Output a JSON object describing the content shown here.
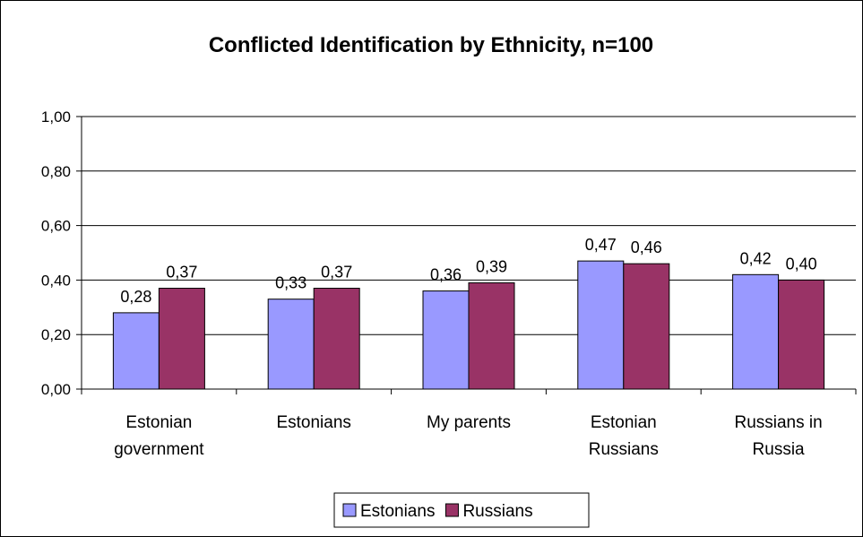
{
  "chart_data": {
    "type": "bar",
    "title": "Conflicted Identification by Ethnicity, n=100",
    "categories": [
      [
        "Estonian",
        "government"
      ],
      [
        "Estonians"
      ],
      [
        "My parents"
      ],
      [
        "Estonian",
        "Russians"
      ],
      [
        "Russians in",
        "Russia"
      ]
    ],
    "series": [
      {
        "name": "Estonians",
        "color": "#9999ff",
        "values": [
          0.28,
          0.33,
          0.36,
          0.47,
          0.42
        ],
        "labels": [
          "0,28",
          "0,33",
          "0,36",
          "0,47",
          "0,42"
        ]
      },
      {
        "name": "Russians",
        "color": "#993366",
        "values": [
          0.37,
          0.37,
          0.39,
          0.46,
          0.4
        ],
        "labels": [
          "0,37",
          "0,37",
          "0,39",
          "0,46",
          "0,40"
        ]
      }
    ],
    "yticks": [
      "0,00",
      "0,20",
      "0,40",
      "0,60",
      "0,80",
      "1,00"
    ],
    "ylim": [
      0,
      1
    ],
    "grid": true,
    "legend": "bottom"
  }
}
